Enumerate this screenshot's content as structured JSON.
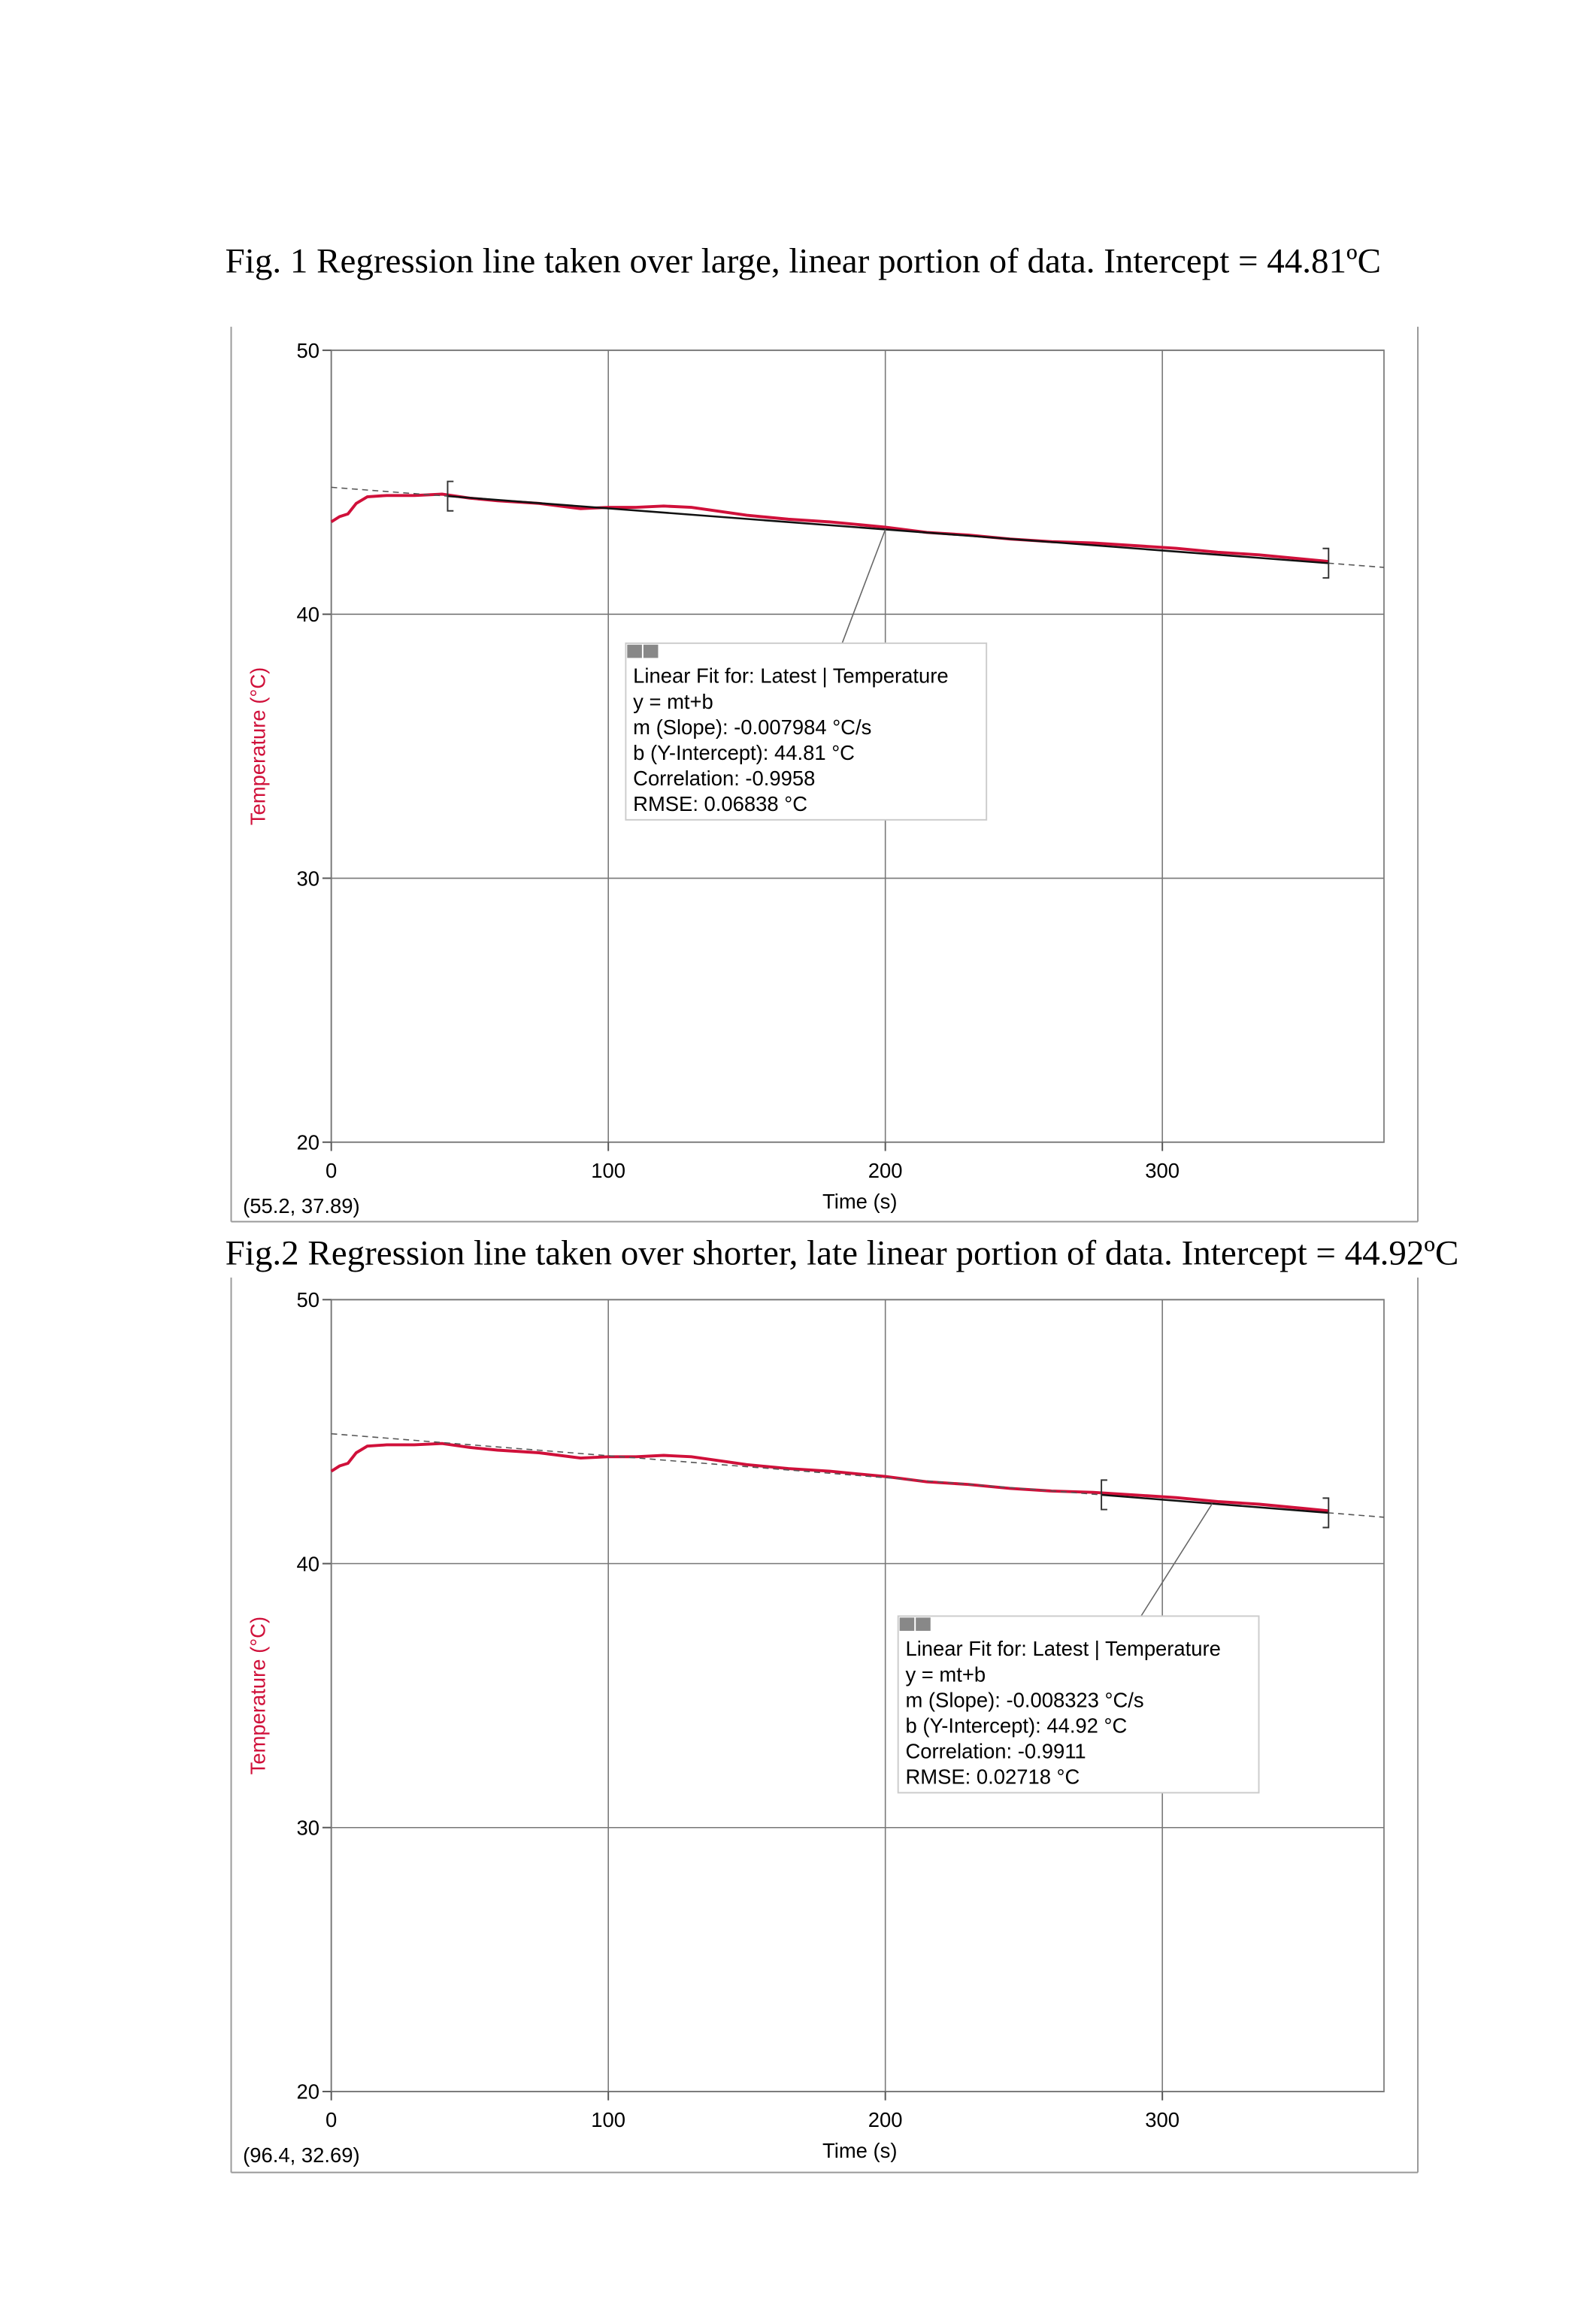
{
  "chart_data": [
    {
      "type": "line",
      "title": "Fig. 1  Regression line taken over large, linear portion of data. Intercept = 44.81ºC",
      "x_label": "Time (s)",
      "y_label": "Temperature (°C)",
      "x": [
        0,
        3,
        6,
        9,
        13,
        20,
        30,
        40,
        50,
        60,
        75,
        90,
        100,
        110,
        120,
        130,
        140,
        150,
        165,
        180,
        200,
        215,
        230,
        245,
        260,
        275,
        290,
        305,
        320,
        335,
        350,
        360
      ],
      "series": [
        {
          "color": "#d0103a",
          "values": [
            43.5,
            43.7,
            43.8,
            44.2,
            44.45,
            44.5,
            44.5,
            44.55,
            44.4,
            44.3,
            44.2,
            44.0,
            44.05,
            44.05,
            44.1,
            44.05,
            43.9,
            43.75,
            43.6,
            43.5,
            43.3,
            43.1,
            43.0,
            42.85,
            42.75,
            42.7,
            42.6,
            42.5,
            42.35,
            42.25,
            42.1,
            42.0
          ]
        }
      ],
      "xlim": [
        0,
        380
      ],
      "ylim": [
        20,
        50
      ],
      "xticks": [
        0,
        100,
        200,
        300
      ],
      "yticks": [
        20,
        30,
        40,
        50
      ],
      "grid": true,
      "fit": {
        "m": -0.007984,
        "b": 44.81,
        "start": 42,
        "end": 360
      },
      "fit_box": [
        "Linear Fit for: Latest | Temperature",
        "y = mt+b",
        "m (Slope): -0.007984 °C/s",
        "b (Y-Intercept): 44.81 °C",
        "Correlation: -0.9958",
        "RMSE: 0.06838 °C"
      ],
      "readout": "(55.2, 37.89)"
    },
    {
      "type": "line",
      "title": "Fig.2 Regression line taken over shorter, late linear portion of data. Intercept = 44.92ºC",
      "x_label": "Time (s)",
      "y_label": "Temperature (°C)",
      "x": [
        0,
        3,
        6,
        9,
        13,
        20,
        30,
        40,
        50,
        60,
        75,
        90,
        100,
        110,
        120,
        130,
        140,
        150,
        165,
        180,
        200,
        215,
        230,
        245,
        260,
        275,
        290,
        305,
        320,
        335,
        350,
        360
      ],
      "series": [
        {
          "color": "#d0103a",
          "values": [
            43.5,
            43.7,
            43.8,
            44.2,
            44.45,
            44.5,
            44.5,
            44.55,
            44.4,
            44.3,
            44.2,
            44.0,
            44.05,
            44.05,
            44.1,
            44.05,
            43.9,
            43.75,
            43.6,
            43.5,
            43.3,
            43.1,
            43.0,
            42.85,
            42.75,
            42.7,
            42.6,
            42.5,
            42.35,
            42.25,
            42.1,
            42.0
          ]
        }
      ],
      "xlim": [
        0,
        380
      ],
      "ylim": [
        20,
        50
      ],
      "xticks": [
        0,
        100,
        200,
        300
      ],
      "yticks": [
        20,
        30,
        40,
        50
      ],
      "grid": true,
      "fit": {
        "m": -0.008323,
        "b": 44.92,
        "start": 278,
        "end": 360
      },
      "fit_box": [
        "Linear Fit for: Latest | Temperature",
        "y = mt+b",
        "m (Slope): -0.008323 °C/s",
        "b (Y-Intercept): 44.92 °C",
        "Correlation: -0.9911",
        "RMSE: 0.02718 °C"
      ],
      "readout": "(96.4, 32.69)"
    }
  ]
}
